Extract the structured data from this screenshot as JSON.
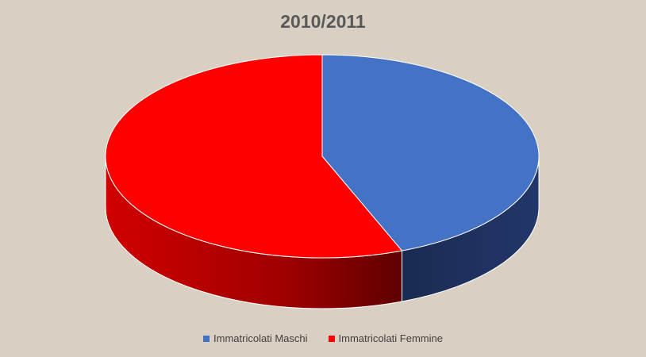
{
  "chart_data": {
    "type": "pie",
    "title": "2010/2011",
    "series": [
      {
        "name": "Immatricolati Maschi",
        "value": 44,
        "color": "#4472c4",
        "side_color": "#1a2b52"
      },
      {
        "name": "Immatricolati Femmine",
        "value": 56,
        "color": "#ff0000",
        "side_color": "#c00000"
      }
    ],
    "legend_position": "bottom",
    "style": "3d"
  }
}
